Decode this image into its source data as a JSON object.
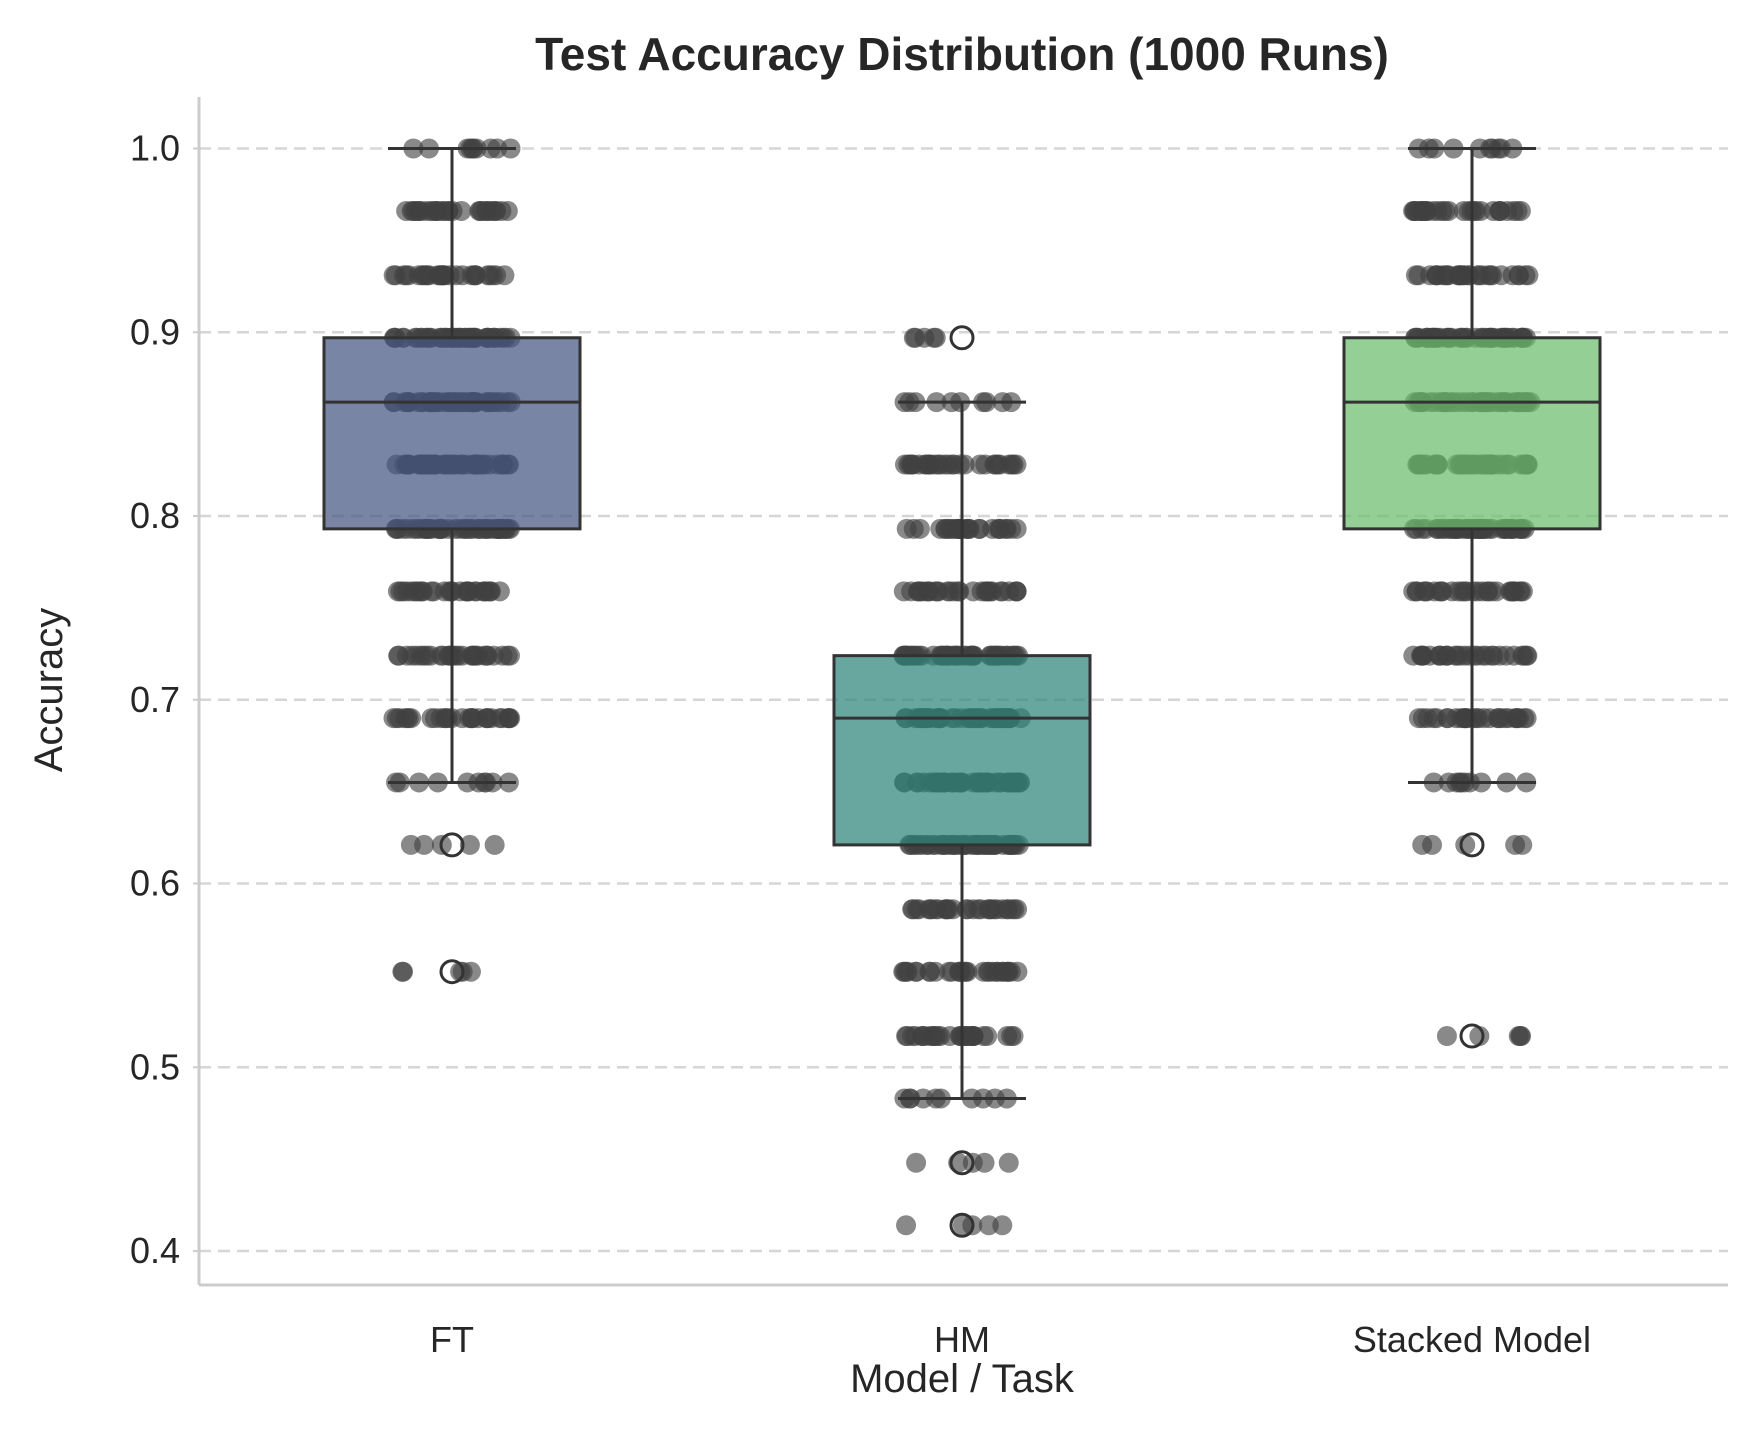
{
  "chart_data": {
    "type": "box",
    "title": "Test Accuracy Distribution (1000 Runs)",
    "xlabel": "Model / Task",
    "ylabel": "Accuracy",
    "ylim": [
      0.385,
      1.03
    ],
    "yticks": [
      "0.4",
      "0.5",
      "0.6",
      "0.7",
      "0.8",
      "0.9",
      "1.0"
    ],
    "grid": "horizontal dashed",
    "categories": [
      "FT",
      "HM",
      "Stacked Model"
    ],
    "colors": [
      "#455681",
      "#2e837c",
      "#6bbe6e"
    ],
    "boxes": [
      {
        "q1": 0.793,
        "median": 0.862,
        "q3": 0.897,
        "whisker_low": 0.655,
        "whisker_high": 1.0,
        "outliers": [
          0.621,
          0.552
        ],
        "points": [
          1.0,
          0.966,
          0.931,
          0.897,
          0.862,
          0.828,
          0.793,
          0.759,
          0.724,
          0.69,
          0.655,
          0.621,
          0.552
        ]
      },
      {
        "q1": 0.621,
        "median": 0.69,
        "q3": 0.724,
        "whisker_low": 0.483,
        "whisker_high": 0.862,
        "outliers": [
          0.897,
          0.448,
          0.414
        ],
        "points": [
          0.897,
          0.862,
          0.828,
          0.793,
          0.759,
          0.724,
          0.69,
          0.655,
          0.621,
          0.586,
          0.552,
          0.517,
          0.483,
          0.448,
          0.414
        ]
      },
      {
        "q1": 0.793,
        "median": 0.862,
        "q3": 0.897,
        "whisker_low": 0.655,
        "whisker_high": 1.0,
        "outliers": [
          0.621,
          0.517
        ],
        "points": [
          1.0,
          0.966,
          0.931,
          0.897,
          0.862,
          0.828,
          0.793,
          0.759,
          0.724,
          0.69,
          0.655,
          0.621,
          0.517
        ]
      }
    ]
  }
}
